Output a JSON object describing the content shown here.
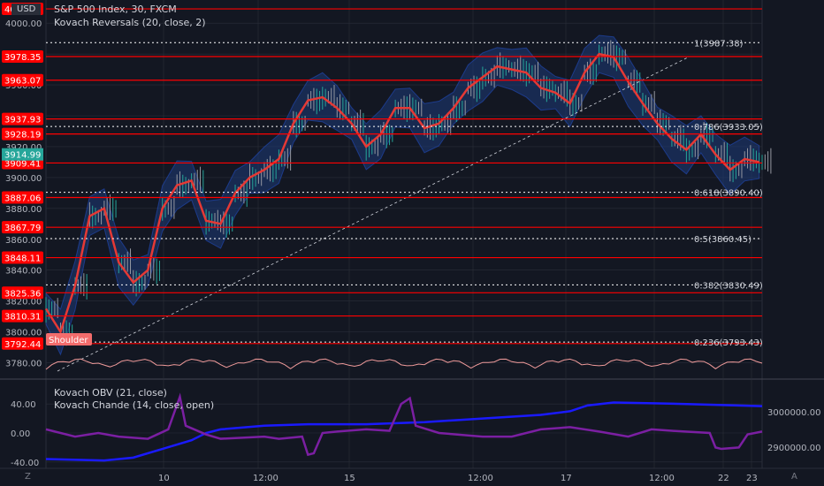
{
  "header": {
    "currency": "USD",
    "title": "S&P 500 Index, 30, FXCM",
    "indicator": "Kovach Reversals (20, close, 2)"
  },
  "lower_pane": {
    "line1": "Kovach OBV (21, close)",
    "line2": "Kovach Chande (14, close, open)"
  },
  "footer": {
    "left_btn": "Z",
    "right_btn": "A"
  },
  "colors": {
    "bg": "#131722",
    "grid": "#2a2e39",
    "level": "#ff0000",
    "price_line": "#e53935",
    "band": "#1e3a78",
    "obv": "#1a1aff",
    "chande": "#7b1fa2",
    "fib": "#ffffff",
    "volume_line": "#ef9a9a"
  },
  "chart_data": {
    "type": "line",
    "symbol": "S&P 500 Index, 30, FXCM",
    "y_ticks": [
      "4000.00",
      "3980.00",
      "3960.00",
      "3940.00",
      "3920.00",
      "3900.00",
      "3880.00",
      "3860.00",
      "3840.00",
      "3820.00",
      "3800.00",
      "3780.00"
    ],
    "x_ticks": [
      "10",
      "12:00",
      "15",
      "12:00",
      "17",
      "12:00",
      "22",
      "23"
    ],
    "price_labels": [
      "3914.99",
      "3909.41"
    ],
    "resistance_levels": [
      4009.25,
      3978.35,
      3963.07,
      3937.93,
      3928.19,
      3909.41,
      3887.06,
      3867.79,
      3848.11,
      3825.36,
      3810.31,
      3792.44
    ],
    "fib_levels": [
      {
        "label": "1(3987.38)",
        "value": 3987.38
      },
      {
        "label": "0.786(3933.05)",
        "value": 3933.05
      },
      {
        "label": "0.618(3890.40)",
        "value": 3890.4
      },
      {
        "label": "0.5(3860.45)",
        "value": 3860.45
      },
      {
        "label": "0.382(3830.49)",
        "value": 3830.49
      },
      {
        "label": "0.236(3793.43)",
        "value": 3793.43
      }
    ],
    "annotation": "Shoulder",
    "price_series": [
      [
        0,
        3815
      ],
      [
        5,
        3800
      ],
      [
        10,
        3830
      ],
      [
        15,
        3875
      ],
      [
        20,
        3880
      ],
      [
        25,
        3845
      ],
      [
        30,
        3832
      ],
      [
        35,
        3840
      ],
      [
        40,
        3880
      ],
      [
        45,
        3895
      ],
      [
        50,
        3898
      ],
      [
        55,
        3872
      ],
      [
        60,
        3870
      ],
      [
        65,
        3890
      ],
      [
        70,
        3900
      ],
      [
        75,
        3905
      ],
      [
        80,
        3912
      ],
      [
        85,
        3935
      ],
      [
        90,
        3950
      ],
      [
        95,
        3952
      ],
      [
        100,
        3945
      ],
      [
        105,
        3935
      ],
      [
        110,
        3920
      ],
      [
        115,
        3928
      ],
      [
        120,
        3945
      ],
      [
        125,
        3945
      ],
      [
        130,
        3932
      ],
      [
        135,
        3935
      ],
      [
        140,
        3945
      ],
      [
        145,
        3958
      ],
      [
        150,
        3965
      ],
      [
        155,
        3972
      ],
      [
        160,
        3970
      ],
      [
        165,
        3968
      ],
      [
        170,
        3958
      ],
      [
        175,
        3955
      ],
      [
        180,
        3948
      ],
      [
        185,
        3968
      ],
      [
        190,
        3980
      ],
      [
        195,
        3978
      ],
      [
        200,
        3962
      ],
      [
        205,
        3948
      ],
      [
        210,
        3935
      ],
      [
        215,
        3925
      ],
      [
        220,
        3918
      ],
      [
        225,
        3928
      ],
      [
        230,
        3915
      ],
      [
        235,
        3905
      ],
      [
        240,
        3912
      ],
      [
        245,
        3910
      ]
    ],
    "lower_left_ticks": [
      "40.00",
      "0.00",
      "-40.00"
    ],
    "lower_right_ticks": [
      "3000000.00",
      "2900000.00"
    ],
    "obv_series": [
      [
        0,
        -36
      ],
      [
        20,
        -38
      ],
      [
        30,
        -34
      ],
      [
        40,
        -22
      ],
      [
        50,
        -10
      ],
      [
        55,
        0
      ],
      [
        60,
        5
      ],
      [
        75,
        10
      ],
      [
        90,
        12
      ],
      [
        110,
        12
      ],
      [
        130,
        15
      ],
      [
        150,
        20
      ],
      [
        170,
        25
      ],
      [
        180,
        30
      ],
      [
        186,
        38
      ],
      [
        195,
        42
      ],
      [
        220,
        40
      ],
      [
        246,
        37
      ]
    ],
    "chande_series": [
      [
        0,
        5
      ],
      [
        10,
        -5
      ],
      [
        18,
        0
      ],
      [
        25,
        -5
      ],
      [
        35,
        -8
      ],
      [
        42,
        5
      ],
      [
        46,
        50
      ],
      [
        48,
        10
      ],
      [
        55,
        -2
      ],
      [
        60,
        -8
      ],
      [
        75,
        -5
      ],
      [
        80,
        -8
      ],
      [
        88,
        -5
      ],
      [
        90,
        -30
      ],
      [
        92,
        -28
      ],
      [
        95,
        0
      ],
      [
        100,
        2
      ],
      [
        110,
        5
      ],
      [
        118,
        3
      ],
      [
        122,
        40
      ],
      [
        125,
        48
      ],
      [
        127,
        10
      ],
      [
        135,
        0
      ],
      [
        150,
        -5
      ],
      [
        160,
        -5
      ],
      [
        170,
        5
      ],
      [
        180,
        8
      ],
      [
        190,
        2
      ],
      [
        200,
        -5
      ],
      [
        208,
        5
      ],
      [
        215,
        3
      ],
      [
        228,
        0
      ],
      [
        230,
        -20
      ],
      [
        232,
        -22
      ],
      [
        238,
        -20
      ],
      [
        241,
        -2
      ],
      [
        246,
        2
      ]
    ]
  }
}
